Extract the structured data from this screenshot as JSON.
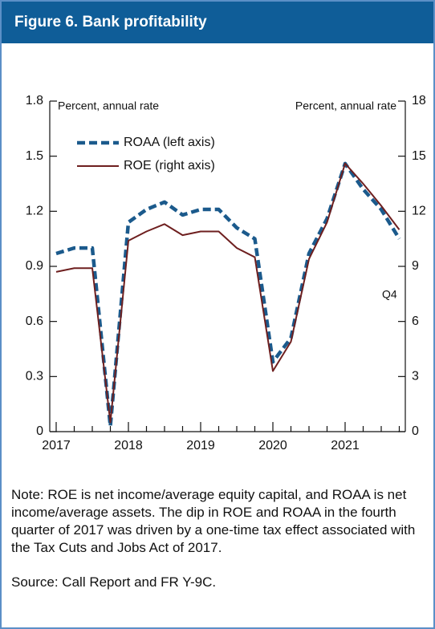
{
  "chart_data": {
    "type": "line",
    "title": "Figure 6. Bank profitability",
    "y_label": "Percent, annual rate",
    "y2_label": "Percent, annual rate",
    "annotation": "Q4",
    "categories": [
      "2017",
      null,
      null,
      null,
      "2018",
      null,
      null,
      null,
      "2019",
      null,
      null,
      null,
      "2020",
      null,
      null,
      null,
      "2021",
      null,
      null,
      null
    ],
    "series": [
      {
        "name": "ROAA (left axis)",
        "color": "#1b5a8c",
        "dashed": true,
        "values": [
          0.97,
          1.0,
          1.0,
          0.03,
          1.14,
          1.21,
          1.25,
          1.18,
          1.21,
          1.21,
          1.11,
          1.05,
          0.38,
          0.51,
          0.97,
          1.16,
          1.46,
          1.32,
          1.21,
          1.05
        ]
      },
      {
        "name": "ROE (right axis)",
        "color": "#6e1f1f",
        "dashed": false,
        "axis": "y2",
        "values": [
          8.7,
          8.9,
          8.9,
          0.5,
          10.4,
          10.9,
          11.3,
          10.7,
          10.9,
          10.9,
          10.0,
          9.5,
          3.3,
          4.9,
          9.4,
          11.4,
          14.6,
          13.5,
          12.3,
          11.0
        ]
      }
    ],
    "ylim": [
      0,
      1.8
    ],
    "yticks": [
      0,
      0.3,
      0.6,
      0.9,
      1.2,
      1.5,
      1.8
    ],
    "y2lim": [
      0,
      18
    ],
    "y2ticks": [
      0,
      3,
      6,
      9,
      12,
      15,
      18
    ],
    "legend": "upper left"
  },
  "note": "Note: ROE is net income/average equity capital, and ROAA is net income/average assets. The dip in ROE and ROAA in the fourth quarter of 2017 was driven by a one-time tax effect associated with the Tax Cuts and Jobs Act of 2017.",
  "source": "Source: Call Report and FR Y-9C."
}
